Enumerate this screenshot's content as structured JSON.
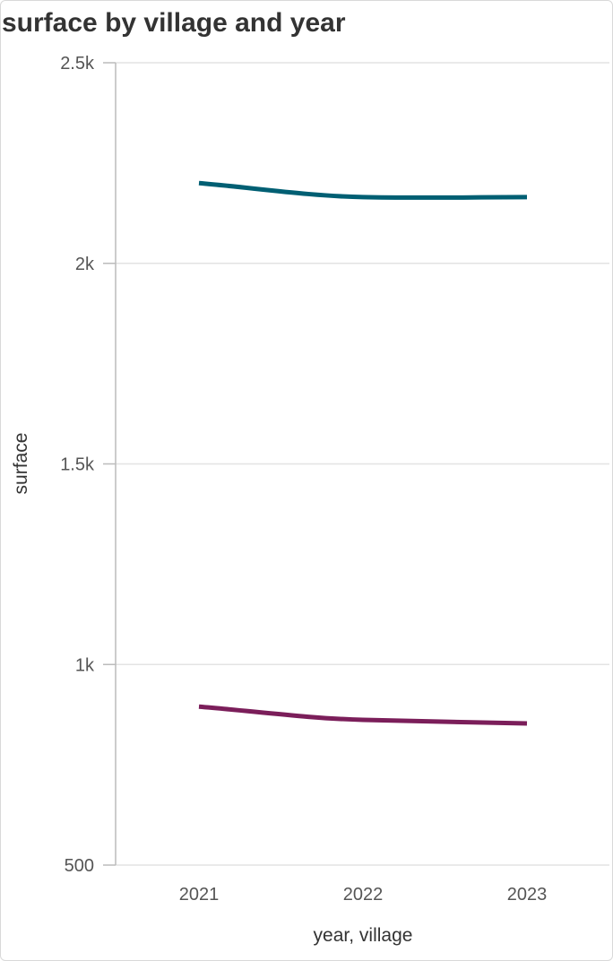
{
  "chart_data": {
    "type": "line",
    "title": "surface by village and year",
    "xlabel": "year, village",
    "ylabel": "surface",
    "x": [
      "2021",
      "2022",
      "2023"
    ],
    "ylim": [
      500,
      2500
    ],
    "yticks": [
      {
        "value": 500,
        "label": "500"
      },
      {
        "value": 1000,
        "label": "1k"
      },
      {
        "value": 1500,
        "label": "1.5k"
      },
      {
        "value": 2000,
        "label": "2k"
      },
      {
        "value": 2500,
        "label": "2.5k"
      }
    ],
    "grid": true,
    "legend": "none",
    "series": [
      {
        "color": "#005f73",
        "values": [
          2200,
          2165,
          2165
        ]
      },
      {
        "color": "#7b1e5a",
        "values": [
          895,
          862,
          853
        ]
      }
    ]
  }
}
